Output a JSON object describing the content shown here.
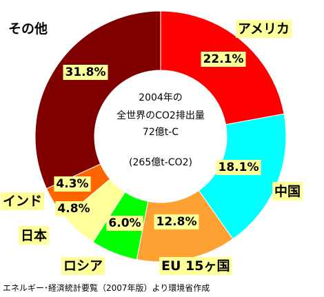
{
  "chart_data": {
    "type": "pie",
    "center_text": [
      "2004年の",
      "全世界のCO2排出量",
      "72億t-C",
      "(265億t-CO2)"
    ],
    "slices": [
      {
        "category": "アメリカ",
        "value": 22.1,
        "label": "22.1%",
        "color": "#ff0000"
      },
      {
        "category": "中国",
        "value": 18.1,
        "label": "18.1%",
        "color": "#00ffff"
      },
      {
        "category": "EU 15ヶ国",
        "value": 12.8,
        "label": "12.8%",
        "color": "#ffa033"
      },
      {
        "category": "ロシア",
        "value": 6.0,
        "label": "6.0%",
        "color": "#00ff00"
      },
      {
        "category": "日本",
        "value": 4.8,
        "label": "4.8%",
        "color": "#ffff99"
      },
      {
        "category": "インド",
        "value": 4.3,
        "label": "4.3%",
        "color": "#ff6600"
      },
      {
        "category": "その他",
        "value": 31.8,
        "label": "31.8%",
        "color": "#800000"
      }
    ],
    "label_box_color": "#ffff99"
  },
  "source": "エネルギー･経済統計要覧（2007年版）より環境省作成"
}
